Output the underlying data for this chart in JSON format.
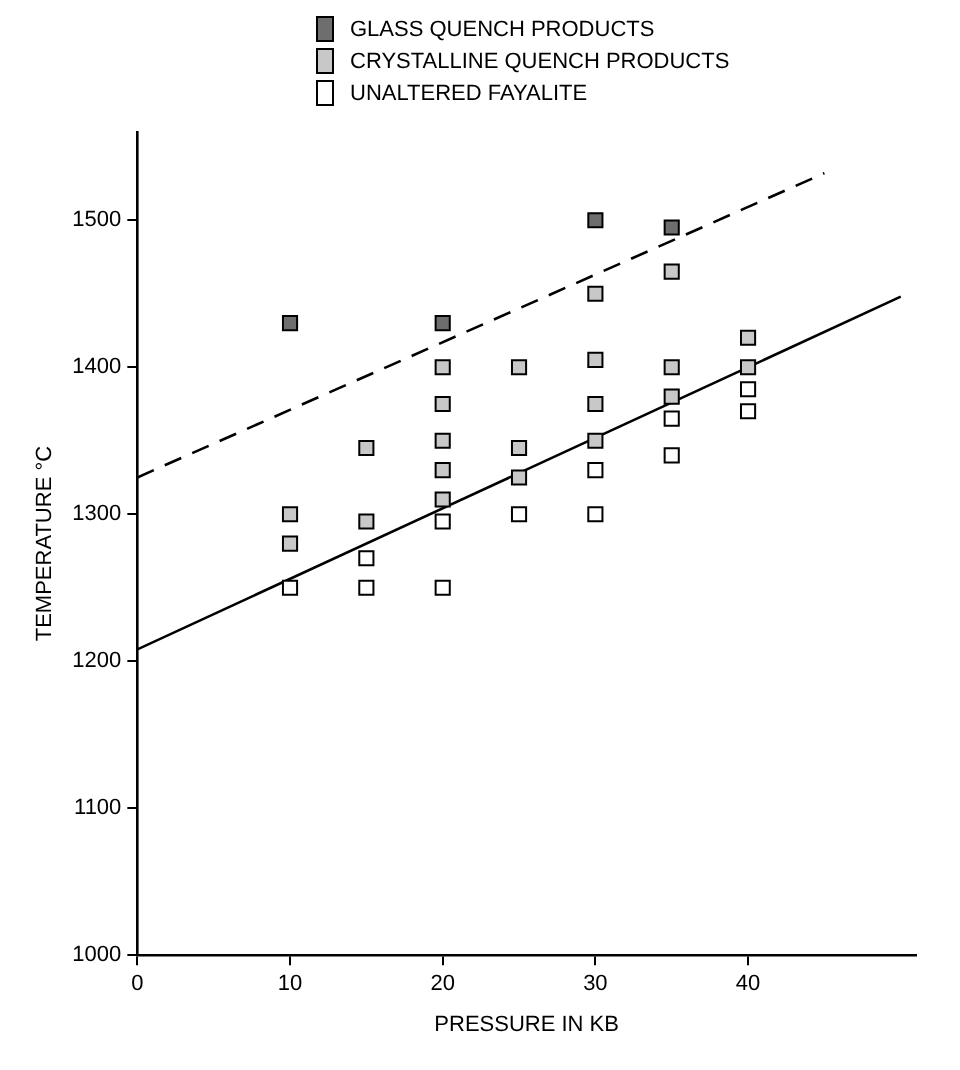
{
  "chart_data": {
    "type": "scatter",
    "xlabel": "PRESSURE IN KB",
    "ylabel": "TEMPERATURE °C",
    "xlim": [
      0,
      51
    ],
    "ylim": [
      1000,
      1560
    ],
    "xticks": [
      0,
      10,
      20,
      30,
      40
    ],
    "yticks": [
      1000,
      1100,
      1200,
      1300,
      1400,
      1500
    ],
    "grid": false,
    "legend": "top left",
    "marker": "square",
    "series": [
      {
        "name": "GLASS QUENCH PRODUCTS",
        "color": "#6e6e6e",
        "x": [
          10,
          20,
          30,
          35
        ],
        "values": [
          1430,
          1430,
          1500,
          1495
        ]
      },
      {
        "name": "CRYSTALLINE QUENCH PRODUCTS",
        "color": "#c8c8c8",
        "x": [
          10,
          10,
          15,
          15,
          20,
          20,
          20,
          20,
          20,
          25,
          25,
          25,
          30,
          30,
          30,
          30,
          35,
          35,
          35,
          40,
          40
        ],
        "values": [
          1300,
          1280,
          1345,
          1295,
          1400,
          1375,
          1350,
          1330,
          1310,
          1400,
          1345,
          1325,
          1450,
          1405,
          1375,
          1350,
          1465,
          1400,
          1380,
          1420,
          1400
        ]
      },
      {
        "name": "UNALTERED FAYALITE",
        "color": "#ffffff",
        "x": [
          10,
          15,
          15,
          20,
          20,
          25,
          30,
          30,
          35,
          35,
          40,
          40
        ],
        "values": [
          1250,
          1270,
          1250,
          1295,
          1250,
          1300,
          1330,
          1300,
          1365,
          1340,
          1385,
          1370
        ]
      },
      {
        "type": "line",
        "color": "#000000",
        "line_style": "solid",
        "marker": "none",
        "x": [
          0,
          50
        ],
        "values": [
          1208,
          1448
        ]
      },
      {
        "type": "line",
        "color": "#000000",
        "line_style": "dashed",
        "marker": "none",
        "x": [
          0,
          45
        ],
        "values": [
          1325,
          1532
        ]
      }
    ]
  }
}
